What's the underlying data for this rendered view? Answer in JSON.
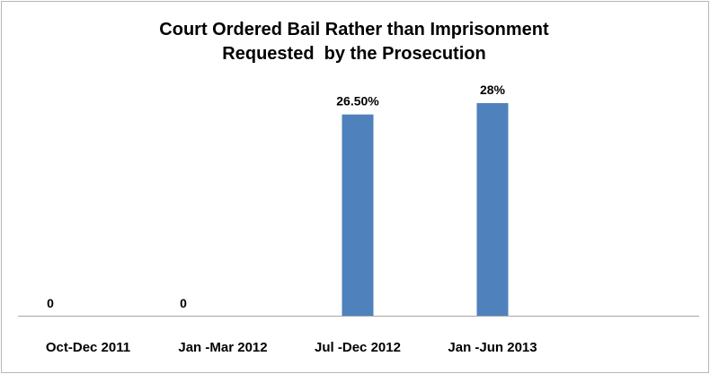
{
  "chart_data": {
    "type": "bar",
    "title_lines": [
      "Court Ordered Bail Rather than Imprisonment",
      "Requested  by the Prosecution"
    ],
    "categories": [
      "Oct-Dec 2011",
      "Jan -Mar 2012",
      "Jul -Dec 2012",
      "Jan -Jun 2013"
    ],
    "values": [
      0,
      0,
      26.5,
      28
    ],
    "data_labels": [
      "0",
      "0",
      "26.50%",
      "28%"
    ],
    "ylim": [
      0,
      30
    ],
    "grid": false,
    "legend": "none",
    "bar_color": "#4f81bd",
    "axis_color": "#a6a6a6"
  }
}
